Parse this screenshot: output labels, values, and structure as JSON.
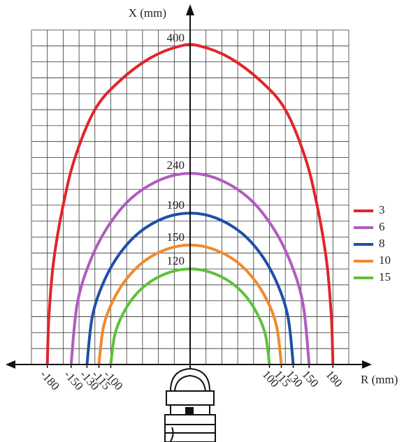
{
  "chart_data": {
    "type": "line",
    "x_label": "R (mm)",
    "y_label": "X (mm)",
    "xlim": [
      -200,
      200
    ],
    "ylim": [
      0,
      420
    ],
    "grid": true,
    "legend": "right",
    "xticks": [
      -180,
      -150,
      -130,
      -115,
      -100,
      100,
      115,
      130,
      150,
      180
    ],
    "series": [
      {
        "name": "3",
        "color": "#e0262a",
        "x": [
          -180,
          -178,
          -172,
          -160,
          -145,
          -120,
          -90,
          -50,
          -12,
          12,
          50,
          90,
          120,
          145,
          160,
          172,
          178,
          180
        ],
        "values": [
          0,
          60,
          130,
          200,
          260,
          320,
          355,
          385,
          400,
          400,
          385,
          355,
          320,
          260,
          200,
          130,
          60,
          0
        ]
      },
      {
        "name": "6",
        "color": "#b05bc0",
        "x": [
          -150,
          -142.5,
          -127.5,
          -105,
          -75,
          -37.5,
          0,
          37.5,
          75,
          105,
          127.5,
          142.5,
          150
        ],
        "values": [
          0,
          75,
          126,
          171,
          208,
          232,
          240,
          232,
          208,
          171,
          126,
          75,
          0
        ]
      },
      {
        "name": "8",
        "color": "#1f4fa8",
        "x": [
          -130,
          -123.5,
          -110.5,
          -91,
          -65,
          -32.5,
          0,
          32.5,
          65,
          91,
          110.5,
          123.5,
          130
        ],
        "values": [
          0,
          59,
          100,
          136,
          165,
          184,
          190,
          184,
          165,
          136,
          100,
          59,
          0
        ]
      },
      {
        "name": "10",
        "color": "#f08a2c",
        "x": [
          -115,
          -109.25,
          -97.75,
          -80.5,
          -57.5,
          -28.75,
          0,
          28.75,
          57.5,
          80.5,
          97.75,
          109.25,
          115
        ],
        "values": [
          0,
          47,
          79,
          107,
          130,
          145,
          150,
          145,
          130,
          107,
          79,
          47,
          0
        ]
      },
      {
        "name": "15",
        "color": "#5cc23a",
        "x": [
          -100,
          -95,
          -85,
          -70,
          -50,
          -25,
          0,
          25,
          50,
          70,
          85,
          95,
          100
        ],
        "values": [
          0,
          37,
          63,
          86,
          104,
          116,
          120,
          116,
          104,
          86,
          63,
          37,
          0
        ]
      }
    ],
    "peak_labels": [
      {
        "series": 0,
        "index": 8
      },
      {
        "series": 1,
        "index": 6
      },
      {
        "series": 2,
        "index": 6
      },
      {
        "series": 3,
        "index": 6
      },
      {
        "series": 4,
        "index": 6
      }
    ]
  }
}
